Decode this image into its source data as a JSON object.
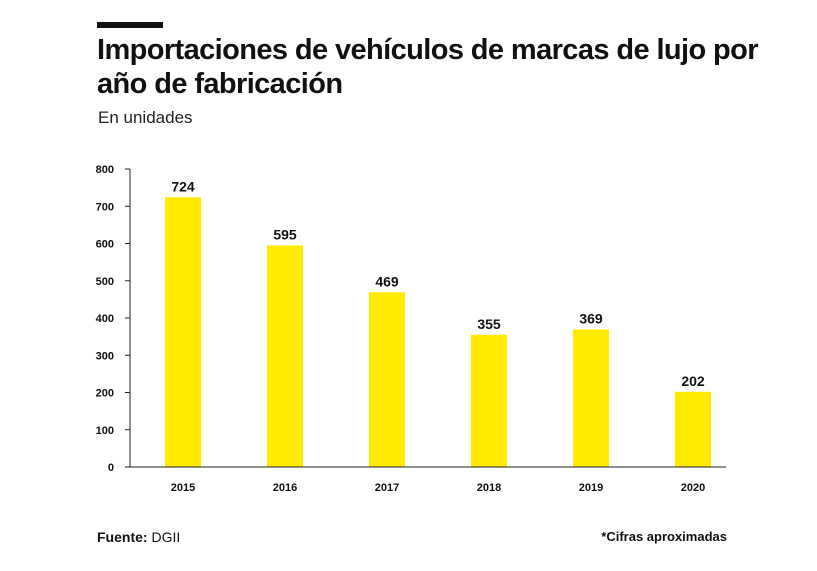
{
  "header": {
    "title": "Importaciones de vehículos de marcas de lujo por año de fabricación",
    "subtitle": "En unidades"
  },
  "footer": {
    "source_label": "Fuente:",
    "source_value": "DGII",
    "note": "*Cifras aproximadas"
  },
  "colors": {
    "bar": "#FFEA00",
    "text": "#111111",
    "axis": "#222222"
  },
  "chart_data": {
    "type": "bar",
    "title": "Importaciones de vehículos de marcas de lujo por año de fabricación",
    "subtitle": "En unidades",
    "categories": [
      "2015",
      "2016",
      "2017",
      "2018",
      "2019",
      "2020"
    ],
    "values": [
      724,
      595,
      469,
      355,
      369,
      202
    ],
    "data_labels": [
      "724",
      "595",
      "469",
      "355",
      "369",
      "202"
    ],
    "xlabel": "",
    "ylabel": "",
    "ylim": [
      0,
      800
    ],
    "yticks": [
      0,
      100,
      200,
      300,
      400,
      500,
      600,
      700,
      800
    ],
    "grid": false,
    "legend": "none"
  }
}
